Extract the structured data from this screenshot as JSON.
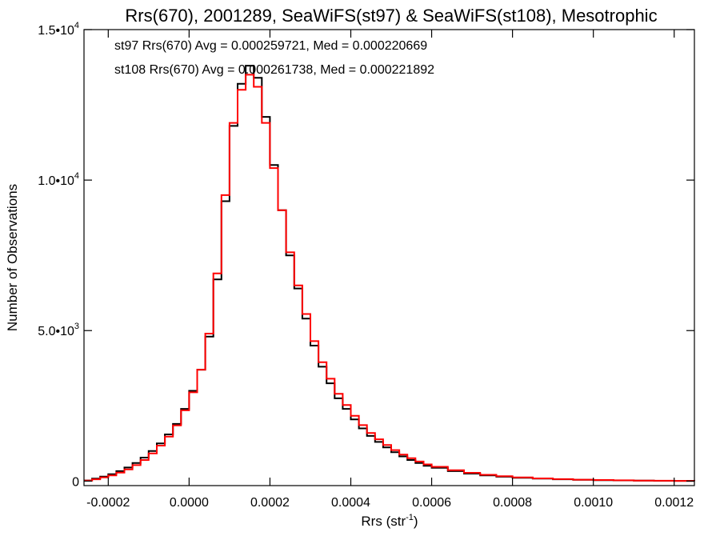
{
  "chart_data": {
    "type": "line",
    "style": "step-histogram",
    "title": "Rrs(670), 2001289, SeaWiFS(st97) & SeaWiFS(st108), Mesotrophic",
    "xlabel": "Rrs (str",
    "xlabel_superscript": "-1",
    "xlabel_suffix": ")",
    "ylabel": "Number of Observations",
    "xlim": [
      -0.00026,
      0.00125
    ],
    "ylim": [
      -150,
      15000
    ],
    "x_ticks": [
      {
        "value": -0.0002,
        "label": "-0.0002"
      },
      {
        "value": 0.0,
        "label": "0.0000"
      },
      {
        "value": 0.0002,
        "label": "0.0002"
      },
      {
        "value": 0.0004,
        "label": "0.0004"
      },
      {
        "value": 0.0006,
        "label": "0.0006"
      },
      {
        "value": 0.0008,
        "label": "0.0008"
      },
      {
        "value": 0.001,
        "label": "0.0010"
      },
      {
        "value": 0.0012,
        "label": "0.0012"
      }
    ],
    "y_ticks": [
      {
        "value": 0,
        "mantissa": "0",
        "exponent": ""
      },
      {
        "value": 5000,
        "mantissa": "5.0•10",
        "exponent": "3"
      },
      {
        "value": 10000,
        "mantissa": "1.0•10",
        "exponent": "4"
      },
      {
        "value": 15000,
        "mantissa": "1.5•10",
        "exponent": "4"
      }
    ],
    "grid": false,
    "annotations": [
      {
        "text": "st97 Rrs(670) Avg = 0.000259721, Med = 0.000220669",
        "color": "#000000"
      },
      {
        "text": "st108 Rrs(670) Avg = 0.000261738, Med = 0.000221892",
        "color": "#ff0000"
      }
    ],
    "series": [
      {
        "color": "#000000",
        "x": [
          -0.00026,
          -0.00024,
          -0.00022,
          -0.0002,
          -0.00018,
          -0.00016,
          -0.00014,
          -0.00012,
          -0.0001,
          -8e-05,
          -6e-05,
          -4e-05,
          -2e-05,
          0.0,
          2e-05,
          4e-05,
          6e-05,
          8e-05,
          0.0001,
          0.00012,
          0.00014,
          0.00016,
          0.00018,
          0.0002,
          0.00022,
          0.00024,
          0.00026,
          0.00028,
          0.0003,
          0.00032,
          0.00034,
          0.00036,
          0.00038,
          0.0004,
          0.00042,
          0.00044,
          0.00046,
          0.00048,
          0.0005,
          0.00052,
          0.00054,
          0.00056,
          0.00058,
          0.0006,
          0.00064,
          0.00068,
          0.00072,
          0.00076,
          0.0008,
          0.00085,
          0.0009,
          0.00095,
          0.001,
          0.00105,
          0.0011,
          0.00115,
          0.0012,
          0.00125
        ],
        "y": [
          20,
          80,
          150,
          230,
          330,
          450,
          600,
          780,
          1000,
          1250,
          1550,
          1900,
          2400,
          3000,
          3700,
          4800,
          6700,
          9300,
          11800,
          13200,
          13800,
          13400,
          12100,
          10500,
          9000,
          7500,
          6400,
          5400,
          4500,
          3800,
          3250,
          2750,
          2400,
          2050,
          1750,
          1500,
          1300,
          1120,
          960,
          820,
          700,
          600,
          510,
          440,
          330,
          250,
          190,
          145,
          110,
          80,
          60,
          45,
          32,
          22,
          15,
          10,
          6,
          4
        ]
      },
      {
        "color": "#ff0000",
        "x": [
          -0.00026,
          -0.00024,
          -0.00022,
          -0.0002,
          -0.00018,
          -0.00016,
          -0.00014,
          -0.00012,
          -0.0001,
          -8e-05,
          -6e-05,
          -4e-05,
          -2e-05,
          0.0,
          2e-05,
          4e-05,
          6e-05,
          8e-05,
          0.0001,
          0.00012,
          0.00014,
          0.00016,
          0.00018,
          0.0002,
          0.00022,
          0.00024,
          0.00026,
          0.00028,
          0.0003,
          0.00032,
          0.00034,
          0.00036,
          0.00038,
          0.0004,
          0.00042,
          0.00044,
          0.00046,
          0.00048,
          0.0005,
          0.00052,
          0.00054,
          0.00056,
          0.00058,
          0.0006,
          0.00064,
          0.00068,
          0.00072,
          0.00076,
          0.0008,
          0.00085,
          0.0009,
          0.00095,
          0.001,
          0.00105,
          0.0011,
          0.00115,
          0.0012,
          0.00125
        ],
        "y": [
          15,
          60,
          120,
          190,
          280,
          390,
          530,
          700,
          920,
          1180,
          1480,
          1850,
          2350,
          2950,
          3700,
          4900,
          6900,
          9500,
          11900,
          13000,
          13500,
          13100,
          11900,
          10400,
          9000,
          7600,
          6500,
          5550,
          4650,
          3950,
          3400,
          2900,
          2530,
          2170,
          1860,
          1600,
          1390,
          1200,
          1030,
          880,
          760,
          650,
          555,
          475,
          360,
          275,
          210,
          160,
          120,
          88,
          65,
          48,
          35,
          25,
          17,
          11,
          7,
          4
        ]
      }
    ]
  }
}
